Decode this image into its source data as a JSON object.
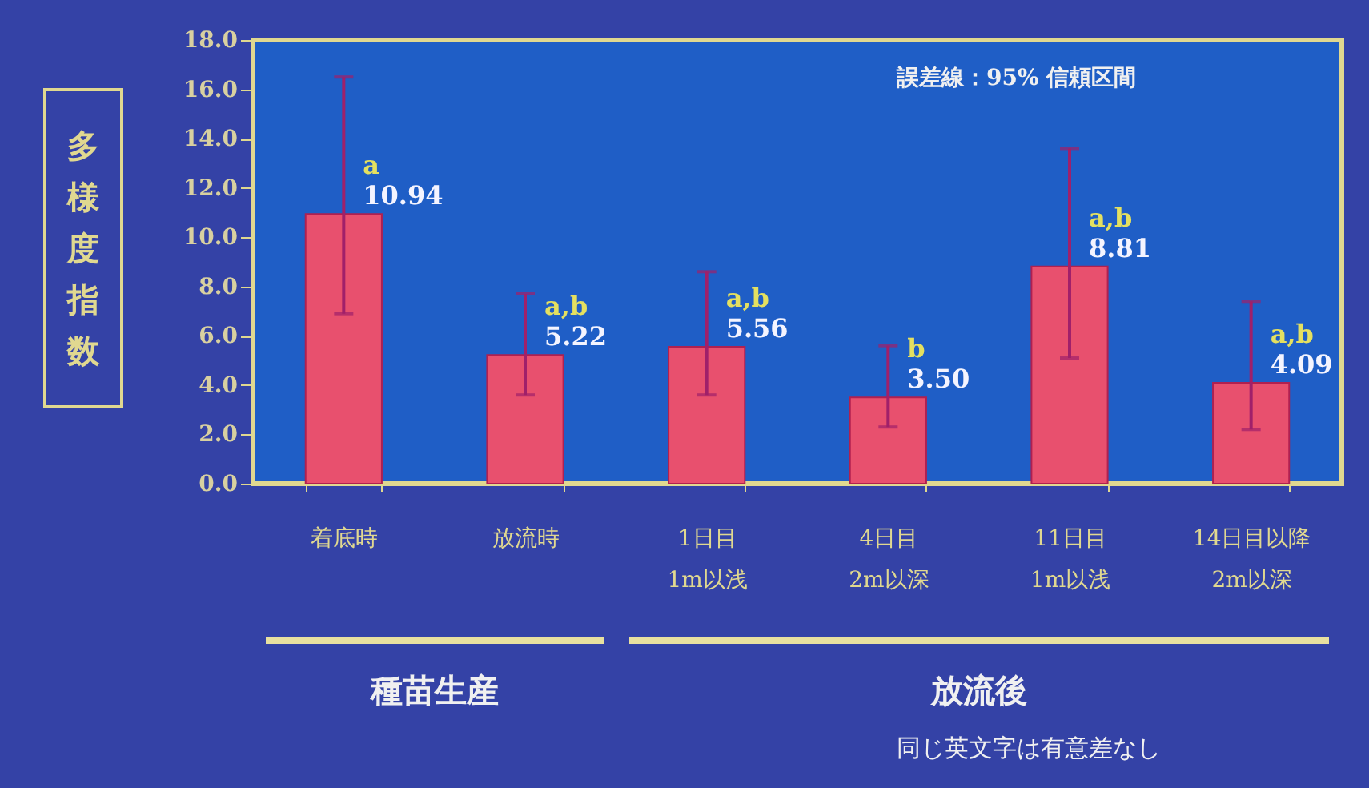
{
  "chart_data": {
    "type": "bar",
    "ylabel": "多様度指数",
    "categories": [
      "着底時",
      "放流時",
      "1日目\n1m以浅",
      "4日目\n2m以深",
      "11日目\n1m以浅",
      "14日目以降\n2m以深"
    ],
    "values": [
      10.94,
      5.22,
      5.56,
      3.5,
      8.81,
      4.09
    ],
    "errors": [
      [
        6.9,
        16.5
      ],
      [
        3.6,
        7.7
      ],
      [
        3.6,
        8.6
      ],
      [
        2.3,
        5.6
      ],
      [
        5.1,
        13.6
      ],
      [
        2.2,
        7.4
      ]
    ],
    "color": "#e8506e",
    "value_labels": [
      "10.94",
      "5.22",
      "5.56",
      "3.50",
      "8.81",
      "4.09"
    ],
    "ylim": [
      0,
      18
    ],
    "yticks": [
      {
        "value": 0,
        "label": "0.0"
      },
      {
        "value": 2,
        "label": "2.0"
      },
      {
        "value": 4,
        "label": "4.0"
      },
      {
        "value": 6,
        "label": "6.0"
      },
      {
        "value": 8,
        "label": "8.0"
      },
      {
        "value": 10,
        "label": "10.0"
      },
      {
        "value": 12,
        "label": "12.0"
      },
      {
        "value": 14,
        "label": "14.0"
      },
      {
        "value": 16,
        "label": "16.0"
      },
      {
        "value": 18,
        "label": "18.0"
      }
    ],
    "annotations": [
      {
        "text": "a",
        "x": "着底時",
        "y": 10.94
      },
      {
        "text": "a,b",
        "x": "放流時",
        "y": 5.22
      },
      {
        "text": "a,b",
        "x": "1日目\n1m以浅",
        "y": 5.56
      },
      {
        "text": "b",
        "x": "4日目\n2m以深",
        "y": 3.5
      },
      {
        "text": "a,b",
        "x": "11日目\n1m以浅",
        "y": 8.81
      },
      {
        "text": "a,b",
        "x": "14日目以降\n2m以深",
        "y": 4.09
      },
      "誤差線：95% 信頼区間",
      "種苗生産",
      "放流後",
      "同じ英文字は有意差なし"
    ]
  }
}
